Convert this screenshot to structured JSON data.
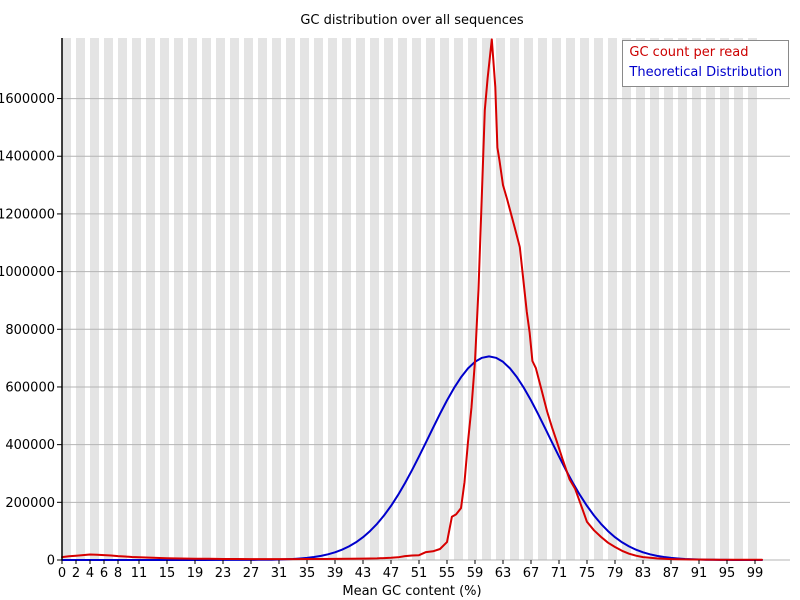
{
  "title": "GC distribution over all sequences",
  "xlabel": "Mean GC content (%)",
  "legend": [
    {
      "label": "GC count per read",
      "color": "#cc0000"
    },
    {
      "label": "Theoretical Distribution",
      "color": "#0000cc"
    }
  ],
  "colors": {
    "stripe_gray": "#e4e4e4",
    "gridline": "#b4b4b4",
    "axis": "#000000",
    "red_series": "#d70000",
    "blue_series": "#0000cc"
  },
  "chart_data": {
    "type": "line",
    "title": "GC distribution over all sequences",
    "xlabel": "Mean GC content (%)",
    "ylabel": "",
    "xlim": [
      0,
      100
    ],
    "ylim": [
      0,
      1810000
    ],
    "grid": "horizontal gridlines at every 200000; vertical alternating gray/white background bands every 2%",
    "legend_position": "top-right",
    "x_ticks": [
      0,
      2,
      4,
      6,
      8,
      11,
      15,
      19,
      23,
      27,
      31,
      35,
      39,
      43,
      47,
      51,
      55,
      59,
      63,
      67,
      71,
      75,
      79,
      83,
      87,
      91,
      95,
      99
    ],
    "y_ticks": [
      0,
      200000,
      400000,
      600000,
      800000,
      1000000,
      1200000,
      1400000,
      1600000
    ],
    "series": [
      {
        "name": "Theoretical Distribution",
        "color": "#0000cc",
        "points": [
          [
            0,
            0
          ],
          [
            5,
            0
          ],
          [
            10,
            10
          ],
          [
            15,
            30
          ],
          [
            20,
            100
          ],
          [
            24,
            300
          ],
          [
            26,
            450
          ],
          [
            28,
            640
          ],
          [
            30,
            1060
          ],
          [
            31,
            1610
          ],
          [
            32,
            2390
          ],
          [
            33,
            3520
          ],
          [
            34,
            5110
          ],
          [
            35,
            7310
          ],
          [
            36,
            10320
          ],
          [
            37,
            14380
          ],
          [
            38,
            19770
          ],
          [
            39,
            26790
          ],
          [
            40,
            35820
          ],
          [
            41,
            47270
          ],
          [
            42,
            61480
          ],
          [
            43,
            78960
          ],
          [
            44,
            100050
          ],
          [
            45,
            125080
          ],
          [
            46,
            154210
          ],
          [
            47,
            187630
          ],
          [
            48,
            225160
          ],
          [
            49,
            266740
          ],
          [
            50,
            311540
          ],
          [
            51,
            359090
          ],
          [
            52,
            408290
          ],
          [
            53,
            458030
          ],
          [
            54,
            506910
          ],
          [
            55,
            553480
          ],
          [
            56,
            596220
          ],
          [
            57,
            633600
          ],
          [
            58,
            664330
          ],
          [
            59,
            687160
          ],
          [
            60,
            701240
          ],
          [
            61,
            706000
          ],
          [
            62,
            701240
          ],
          [
            63,
            687160
          ],
          [
            64,
            664330
          ],
          [
            65,
            633600
          ],
          [
            66,
            596220
          ],
          [
            67,
            553480
          ],
          [
            68,
            506910
          ],
          [
            69,
            458030
          ],
          [
            70,
            408290
          ],
          [
            71,
            359090
          ],
          [
            72,
            311540
          ],
          [
            73,
            266740
          ],
          [
            74,
            225160
          ],
          [
            75,
            187630
          ],
          [
            76,
            154210
          ],
          [
            77,
            125080
          ],
          [
            78,
            100050
          ],
          [
            79,
            78960
          ],
          [
            80,
            61480
          ],
          [
            81,
            47270
          ],
          [
            82,
            35820
          ],
          [
            83,
            26790
          ],
          [
            84,
            19770
          ],
          [
            85,
            14380
          ],
          [
            86,
            10320
          ],
          [
            87,
            7310
          ],
          [
            88,
            5110
          ],
          [
            89,
            3520
          ],
          [
            90,
            2390
          ],
          [
            91,
            1610
          ],
          [
            92,
            1060
          ],
          [
            93,
            690
          ],
          [
            94,
            440
          ],
          [
            95,
            280
          ],
          [
            96,
            170
          ],
          [
            97,
            100
          ],
          [
            98,
            60
          ],
          [
            99,
            40
          ],
          [
            100,
            20
          ]
        ]
      },
      {
        "name": "GC count per read",
        "color": "#d70000",
        "points": [
          [
            0,
            10000
          ],
          [
            1,
            13000
          ],
          [
            2,
            15000
          ],
          [
            3,
            17000
          ],
          [
            4,
            19000
          ],
          [
            5,
            18500
          ],
          [
            6,
            17000
          ],
          [
            7,
            15500
          ],
          [
            8,
            13500
          ],
          [
            9,
            12000
          ],
          [
            10,
            10500
          ],
          [
            11,
            9500
          ],
          [
            12,
            8500
          ],
          [
            13,
            7500
          ],
          [
            14,
            6800
          ],
          [
            15,
            6200
          ],
          [
            16,
            5600
          ],
          [
            17,
            5200
          ],
          [
            18,
            4800
          ],
          [
            19,
            4500
          ],
          [
            21,
            4000
          ],
          [
            23,
            3600
          ],
          [
            25,
            3300
          ],
          [
            27,
            3100
          ],
          [
            29,
            3000
          ],
          [
            31,
            3000
          ],
          [
            33,
            3100
          ],
          [
            35,
            3300
          ],
          [
            37,
            3600
          ],
          [
            39,
            3900
          ],
          [
            41,
            4300
          ],
          [
            43,
            4800
          ],
          [
            45,
            5600
          ],
          [
            46,
            6500
          ],
          [
            47,
            7500
          ],
          [
            48,
            9500
          ],
          [
            49,
            13500
          ],
          [
            50,
            15500
          ],
          [
            51,
            16500
          ],
          [
            52,
            27500
          ],
          [
            53,
            30000
          ],
          [
            54,
            38000
          ],
          [
            55,
            62000
          ],
          [
            55.7,
            150000
          ],
          [
            56.3,
            158000
          ],
          [
            57,
            180000
          ],
          [
            57.5,
            270000
          ],
          [
            58,
            410000
          ],
          [
            58.5,
            530000
          ],
          [
            59,
            690000
          ],
          [
            59.5,
            940000
          ],
          [
            60,
            1280000
          ],
          [
            60.4,
            1560000
          ],
          [
            60.8,
            1670000
          ],
          [
            61.4,
            1805000
          ],
          [
            61.9,
            1640000
          ],
          [
            62.2,
            1430000
          ],
          [
            62.5,
            1385000
          ],
          [
            63,
            1300000
          ],
          [
            63.6,
            1250000
          ],
          [
            64.7,
            1150000
          ],
          [
            65.4,
            1085000
          ],
          [
            66,
            950000
          ],
          [
            66.4,
            860000
          ],
          [
            66.8,
            790000
          ],
          [
            67.2,
            690000
          ],
          [
            67.7,
            665000
          ],
          [
            68.5,
            590000
          ],
          [
            69.3,
            515000
          ],
          [
            70,
            460000
          ],
          [
            70.7,
            410000
          ],
          [
            71.5,
            350000
          ],
          [
            72.5,
            280000
          ],
          [
            73.3,
            247000
          ],
          [
            74,
            200000
          ],
          [
            75,
            132000
          ],
          [
            76,
            103000
          ],
          [
            77,
            80000
          ],
          [
            78,
            60000
          ],
          [
            79,
            45000
          ],
          [
            80,
            32000
          ],
          [
            81,
            22000
          ],
          [
            82,
            15000
          ],
          [
            83,
            10000
          ],
          [
            84,
            7500
          ],
          [
            85,
            5500
          ],
          [
            86,
            4200
          ],
          [
            87,
            3200
          ],
          [
            88,
            2600
          ],
          [
            89,
            2100
          ],
          [
            90,
            1800
          ],
          [
            92,
            1400
          ],
          [
            94,
            1100
          ],
          [
            96,
            900
          ],
          [
            98,
            800
          ],
          [
            100,
            700
          ]
        ]
      }
    ]
  }
}
